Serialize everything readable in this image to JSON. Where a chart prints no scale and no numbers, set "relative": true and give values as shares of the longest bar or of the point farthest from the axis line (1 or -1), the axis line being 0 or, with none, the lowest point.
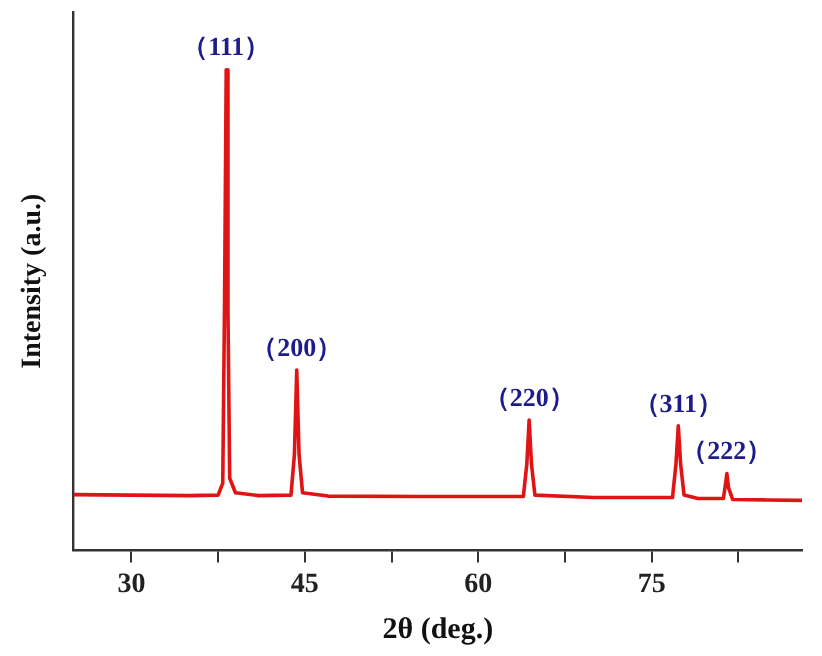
{
  "chart_data": {
    "type": "line",
    "xlabel": "2θ (deg.)",
    "ylabel": "Intensity (a.u.)",
    "relative": true,
    "tick_labels": "x",
    "grid": false,
    "legend": false,
    "marker": "none",
    "line_style": "solid",
    "xlim": [
      25,
      88
    ],
    "xticks": [
      30,
      {
        "value": 37.5,
        "label": null
      },
      45,
      {
        "value": 52.5,
        "label": null
      },
      60,
      {
        "value": 67.5,
        "label": null
      },
      75,
      {
        "value": 82.5,
        "label": null
      }
    ],
    "series": [
      {
        "color": "#e01414",
        "x": [
          25,
          30,
          35,
          37.5,
          37.9,
          38.05,
          38.2,
          38.35,
          38.5,
          39,
          41,
          43.8,
          44.1,
          44.3,
          44.5,
          44.8,
          47,
          55,
          63.9,
          64.2,
          64.4,
          64.6,
          64.9,
          70,
          76.8,
          77.1,
          77.3,
          77.5,
          77.8,
          79,
          81.2,
          81.4,
          81.5,
          81.65,
          82,
          85,
          88
        ],
        "values": [
          0.116,
          0.115,
          0.114,
          0.115,
          0.14,
          0.5,
          1,
          0.5,
          0.15,
          0.12,
          0.114,
          0.115,
          0.2,
          0.375,
          0.2,
          0.12,
          0.113,
          0.112,
          0.112,
          0.18,
          0.271,
          0.18,
          0.115,
          0.11,
          0.11,
          0.18,
          0.259,
          0.18,
          0.115,
          0.108,
          0.108,
          0.14,
          0.16,
          0.13,
          0.106,
          0.105,
          0.104
        ]
      }
    ],
    "annotations": [
      {
        "text": "（111）",
        "x": 38.2,
        "y": 1
      },
      {
        "text": "（200）",
        "x": 44.3,
        "y": 0.375
      },
      {
        "text": "（220）",
        "x": 64.4,
        "y": 0.271
      },
      {
        "text": "（311）",
        "x": 77.3,
        "y": 0.259
      },
      {
        "text": "（222）",
        "x": 81.5,
        "y": 0.16
      }
    ]
  }
}
